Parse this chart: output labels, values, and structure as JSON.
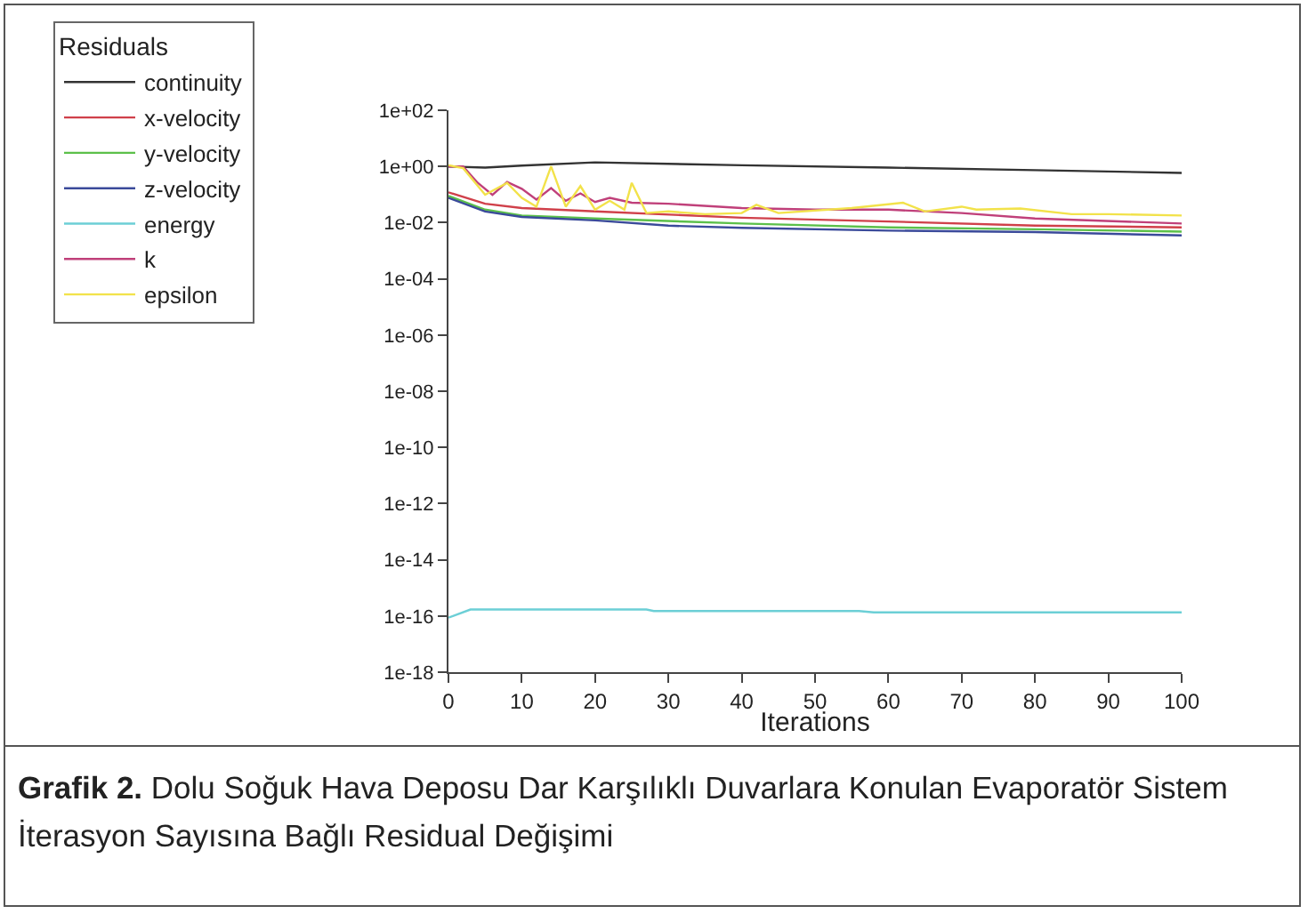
{
  "chart_data": {
    "type": "line",
    "xlabel": "Iterations",
    "legend_title": "Residuals",
    "legend": "top left",
    "grid": false,
    "log": "y",
    "marker": "none",
    "line_style": "solid",
    "xlim": [
      0,
      100
    ],
    "xticks": [
      0,
      10,
      20,
      30,
      40,
      50,
      60,
      70,
      80,
      90,
      100
    ],
    "ylim": [
      1e-18,
      100
    ],
    "yticks": [
      {
        "value": 1e-18,
        "label": "1e-18"
      },
      {
        "value": 1e-16,
        "label": "1e-16"
      },
      {
        "value": 1e-14,
        "label": "1e-14"
      },
      {
        "value": 1e-12,
        "label": "1e-12"
      },
      {
        "value": 1e-10,
        "label": "1e-10"
      },
      {
        "value": 1e-08,
        "label": "1e-08"
      },
      {
        "value": 1e-06,
        "label": "1e-06"
      },
      {
        "value": 0.0001,
        "label": "1e-04"
      },
      {
        "value": 0.01,
        "label": "1e-02"
      },
      {
        "value": 1,
        "label": "1e+00"
      },
      {
        "value": 100,
        "label": "1e+02"
      }
    ],
    "series": [
      {
        "name": "continuity",
        "color": "#333333",
        "x": [
          0,
          5,
          10,
          20,
          40,
          60,
          80,
          100
        ],
        "values": [
          1,
          0.91,
          1.07,
          1.4,
          1.1,
          0.91,
          0.74,
          0.59
        ]
      },
      {
        "name": "x-velocity",
        "color": "#d0404a",
        "x": [
          0,
          5,
          10,
          20,
          40,
          60,
          80,
          100
        ],
        "values": [
          0.12,
          0.047,
          0.033,
          0.025,
          0.015,
          0.011,
          0.0078,
          0.0068
        ]
      },
      {
        "name": "y-velocity",
        "color": "#5cc04a",
        "x": [
          0,
          5,
          10,
          20,
          40,
          60,
          80,
          100
        ],
        "values": [
          0.089,
          0.029,
          0.018,
          0.014,
          0.0093,
          0.0068,
          0.0058,
          0.0048
        ]
      },
      {
        "name": "z-velocity",
        "color": "#3a4a9a",
        "x": [
          0,
          5,
          10,
          20,
          30,
          40,
          60,
          80,
          100
        ],
        "values": [
          0.076,
          0.025,
          0.016,
          0.012,
          0.0078,
          0.0065,
          0.0052,
          0.0046,
          0.0035
        ]
      },
      {
        "name": "energy",
        "color": "#6ccfd6",
        "x": [
          0,
          3,
          27,
          28,
          56,
          58,
          100
        ],
        "values": [
          8.7e-17,
          1.7e-16,
          1.7e-16,
          1.5e-16,
          1.5e-16,
          1.35e-16,
          1.35e-16
        ]
      },
      {
        "name": "k",
        "color": "#c0407a",
        "x": [
          0,
          2,
          4,
          6,
          8,
          10,
          12,
          14,
          16,
          18,
          20,
          22,
          25,
          30,
          40,
          50,
          60,
          70,
          80,
          100
        ],
        "values": [
          1,
          1,
          0.26,
          0.098,
          0.28,
          0.16,
          0.066,
          0.17,
          0.06,
          0.11,
          0.054,
          0.076,
          0.051,
          0.047,
          0.033,
          0.029,
          0.029,
          0.022,
          0.014,
          0.0093
        ]
      },
      {
        "name": "epsilon",
        "color": "#f2e24a",
        "x": [
          0,
          2,
          5,
          8,
          10,
          12,
          14,
          16,
          18,
          20,
          22,
          24,
          25,
          27,
          30,
          35,
          40,
          42,
          45,
          55,
          62,
          65,
          70,
          72,
          78,
          85,
          90,
          100
        ],
        "values": [
          1.1,
          0.87,
          0.098,
          0.26,
          0.076,
          0.037,
          1.0,
          0.037,
          0.2,
          0.029,
          0.06,
          0.029,
          0.26,
          0.022,
          0.025,
          0.02,
          0.022,
          0.043,
          0.022,
          0.033,
          0.051,
          0.025,
          0.037,
          0.029,
          0.032,
          0.02,
          0.02,
          0.018
        ]
      }
    ],
    "annotations": [
      "Grafik 2.",
      "Dolu Soğuk Hava Deposu Dar Karşılıklı Duvarlara Konulan Evaporatör Sistem İterasyon Sayısına Bağlı Residual Değişimi"
    ]
  }
}
